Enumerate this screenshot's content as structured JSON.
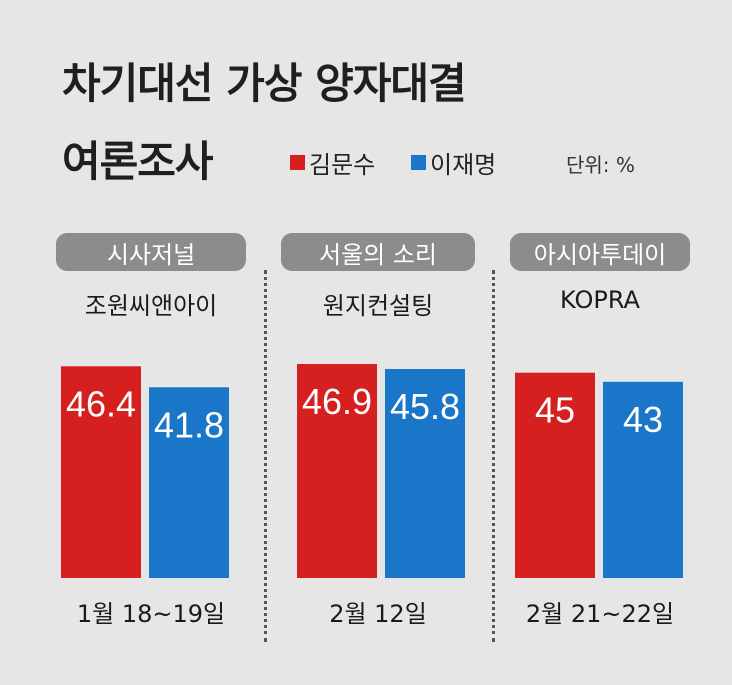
{
  "title_line1": "차기대선 가상 양자대결",
  "title_line2": "여론조사",
  "legend": [
    {
      "label": "김문수",
      "color": "#d62020"
    },
    {
      "label": "이재명",
      "color": "#1a76c8"
    }
  ],
  "unit": "단위: %",
  "chart_data": {
    "type": "bar",
    "title": "차기대선 가상 양자대결 여론조사",
    "unit": "단위: %",
    "groups": [
      {
        "outlet": "시사저널",
        "pollster": "조원씨앤아이",
        "date": "1월 18~19일"
      },
      {
        "outlet": "서울의 소리",
        "pollster": "원지컨설팅",
        "date": "2월 12일"
      },
      {
        "outlet": "아시아투데이",
        "pollster": "KOPRA",
        "date": "2월 21~22일"
      }
    ],
    "series": [
      {
        "name": "김문수",
        "color": "#d62020",
        "values": [
          46.4,
          46.9,
          45
        ],
        "labels": [
          "46.4",
          "46.9",
          "45"
        ]
      },
      {
        "name": "이재명",
        "color": "#1a76c8",
        "values": [
          41.8,
          45.8,
          43
        ],
        "labels": [
          "41.8",
          "45.8",
          "43"
        ]
      }
    ],
    "ylim": [
      0,
      46.9
    ],
    "grid": false,
    "legend_position": "top"
  }
}
